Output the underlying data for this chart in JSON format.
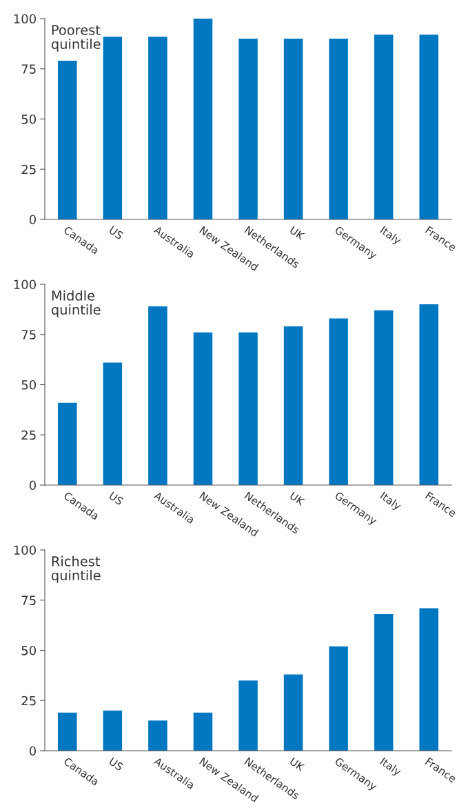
{
  "chart_data": [
    {
      "type": "bar",
      "title": "Poorest\nquintile",
      "categories": [
        "Canada",
        "US",
        "Australia",
        "New Zealand",
        "Netherlands",
        "UK",
        "Germany",
        "Italy",
        "France"
      ],
      "values": [
        79,
        91,
        91,
        100,
        90,
        90,
        90,
        92,
        92
      ],
      "color": "#0077c0",
      "ylim": [
        0,
        100
      ],
      "yticks": [
        0,
        25,
        50,
        75,
        100
      ],
      "grid": false
    },
    {
      "type": "bar",
      "title": "Middle\nquintile",
      "categories": [
        "Canada",
        "US",
        "Australia",
        "New Zealand",
        "Netherlands",
        "UK",
        "Germany",
        "Italy",
        "France"
      ],
      "values": [
        41,
        61,
        89,
        76,
        76,
        79,
        83,
        87,
        90
      ],
      "color": "#0077c0",
      "ylim": [
        0,
        100
      ],
      "yticks": [
        0,
        25,
        50,
        75,
        100
      ],
      "grid": false
    },
    {
      "type": "bar",
      "title": "Richest\nquintile",
      "categories": [
        "Canada",
        "US",
        "Australia",
        "New Zealand",
        "Netherlands",
        "UK",
        "Germany",
        "Italy",
        "France"
      ],
      "values": [
        19,
        20,
        15,
        19,
        35,
        38,
        52,
        68,
        71
      ],
      "color": "#0077c0",
      "ylim": [
        0,
        100
      ],
      "yticks": [
        0,
        25,
        50,
        75,
        100
      ],
      "grid": false
    }
  ]
}
